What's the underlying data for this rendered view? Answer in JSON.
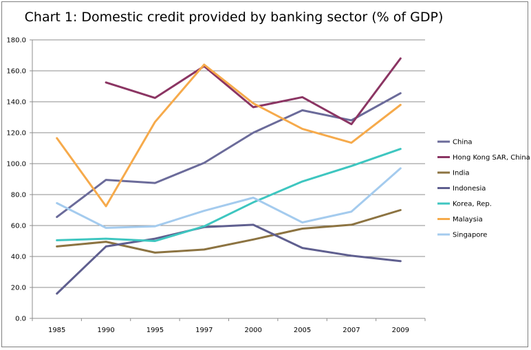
{
  "chart_data": {
    "type": "line",
    "title": "Chart 1: Domestic credit provided by banking sector (% of GDP)",
    "categories": [
      "1985",
      "1990",
      "1995",
      "1997",
      "2000",
      "2005",
      "2007",
      "2009"
    ],
    "y_ticks": [
      "0.0",
      "20.0",
      "40.0",
      "60.0",
      "80.0",
      "100.0",
      "120.0",
      "140.0",
      "160.0",
      "180.0"
    ],
    "ylim": [
      0,
      180
    ],
    "grid": true,
    "legend_position": "right",
    "series": [
      {
        "name": "China",
        "color": "#6b6b9a",
        "values": [
          65.5,
          89.5,
          87.5,
          100.5,
          120,
          134.5,
          128,
          145.5
        ]
      },
      {
        "name": "Hong Kong SAR, China",
        "color": "#8b3563",
        "values": [
          null,
          152.5,
          142.5,
          163,
          136.5,
          143,
          125.5,
          168
        ]
      },
      {
        "name": "India",
        "color": "#8c7341",
        "values": [
          46.5,
          49.5,
          42.5,
          44.5,
          51,
          58,
          60.5,
          70
        ]
      },
      {
        "name": "Indonesia",
        "color": "#5f5f8f",
        "values": [
          16,
          46.5,
          51.5,
          59,
          60.5,
          45.5,
          40.5,
          37
        ]
      },
      {
        "name": "Korea, Rep.",
        "color": "#3ec6c0",
        "values": [
          50.5,
          51.5,
          50,
          59.5,
          75,
          88.5,
          98.5,
          109.5
        ]
      },
      {
        "name": "Malaysia",
        "color": "#f6aa4b",
        "values": [
          116.5,
          72.5,
          127,
          164,
          139,
          122.5,
          113.5,
          138
        ]
      },
      {
        "name": "Singapore",
        "color": "#a4cbee",
        "values": [
          74.5,
          58.5,
          59.5,
          69.5,
          78,
          62,
          69,
          97
        ]
      }
    ]
  }
}
